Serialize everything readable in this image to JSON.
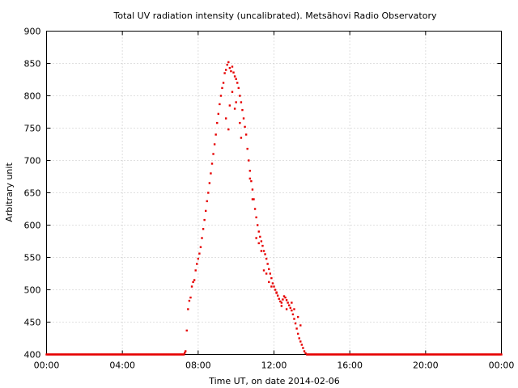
{
  "chart_data": {
    "type": "scatter",
    "title": "Total UV radiation intensity (uncalibrated). Metsähovi Radio Observatory",
    "xlabel": "Time UT, on date 2014-02-06",
    "ylabel": "Arbitrary unit",
    "xlim": [
      "00:00",
      "24:00"
    ],
    "ylim": [
      400,
      900
    ],
    "xticks": [
      "00:00",
      "04:00",
      "08:00",
      "12:00",
      "16:00",
      "20:00",
      "00:00"
    ],
    "yticks": [
      400,
      450,
      500,
      550,
      600,
      650,
      700,
      750,
      800,
      850,
      900
    ],
    "grid": true,
    "color": "#e60000",
    "series": [
      {
        "points": [
          [
            "00:00",
            400
          ],
          [
            "07:15",
            400
          ],
          [
            "07:20",
            405
          ],
          [
            "07:24",
            437
          ],
          [
            "07:28",
            470
          ],
          [
            "07:32",
            483
          ],
          [
            "07:36",
            488
          ],
          [
            "07:40",
            505
          ],
          [
            "07:44",
            512
          ],
          [
            "07:48",
            515
          ],
          [
            "07:52",
            530
          ],
          [
            "07:56",
            540
          ],
          [
            "08:00",
            548
          ],
          [
            "08:04",
            556
          ],
          [
            "08:08",
            566
          ],
          [
            "08:12",
            580
          ],
          [
            "08:16",
            594
          ],
          [
            "08:20",
            608
          ],
          [
            "08:24",
            622
          ],
          [
            "08:28",
            637
          ],
          [
            "08:32",
            650
          ],
          [
            "08:36",
            665
          ],
          [
            "08:40",
            680
          ],
          [
            "08:44",
            695
          ],
          [
            "08:48",
            710
          ],
          [
            "08:52",
            725
          ],
          [
            "08:56",
            740
          ],
          [
            "09:00",
            758
          ],
          [
            "09:04",
            772
          ],
          [
            "09:08",
            787
          ],
          [
            "09:12",
            800
          ],
          [
            "09:16",
            812
          ],
          [
            "09:20",
            820
          ],
          [
            "09:24",
            835
          ],
          [
            "09:28",
            840
          ],
          [
            "09:32",
            848
          ],
          [
            "09:36",
            852
          ],
          [
            "09:40",
            843
          ],
          [
            "09:44",
            838
          ],
          [
            "09:48",
            845
          ],
          [
            "09:52",
            836
          ],
          [
            "09:56",
            830
          ],
          [
            "10:00",
            826
          ],
          [
            "10:04",
            820
          ],
          [
            "10:08",
            812
          ],
          [
            "10:12",
            800
          ],
          [
            "10:16",
            790
          ],
          [
            "10:20",
            778
          ],
          [
            "10:24",
            765
          ],
          [
            "10:28",
            752
          ],
          [
            "10:32",
            740
          ],
          [
            "10:36",
            718
          ],
          [
            "10:40",
            700
          ],
          [
            "10:44",
            684
          ],
          [
            "10:48",
            668
          ],
          [
            "10:52",
            655
          ],
          [
            "10:56",
            640
          ],
          [
            "11:00",
            625
          ],
          [
            "11:04",
            612
          ],
          [
            "11:08",
            600
          ],
          [
            "11:12",
            590
          ],
          [
            "11:16",
            582
          ],
          [
            "11:20",
            575
          ],
          [
            "11:24",
            568
          ],
          [
            "11:28",
            560
          ],
          [
            "11:32",
            555
          ],
          [
            "11:36",
            548
          ],
          [
            "11:40",
            540
          ],
          [
            "11:44",
            532
          ],
          [
            "11:48",
            525
          ],
          [
            "11:52",
            518
          ],
          [
            "11:56",
            510
          ],
          [
            "12:00",
            505
          ],
          [
            "12:04",
            500
          ],
          [
            "12:08",
            496
          ],
          [
            "12:12",
            491
          ],
          [
            "12:16",
            486
          ],
          [
            "12:20",
            482
          ],
          [
            "12:24",
            480
          ],
          [
            "12:28",
            485
          ],
          [
            "12:32",
            490
          ],
          [
            "12:36",
            488
          ],
          [
            "12:40",
            484
          ],
          [
            "12:44",
            480
          ],
          [
            "12:48",
            476
          ],
          [
            "12:52",
            472
          ],
          [
            "12:56",
            468
          ],
          [
            "13:00",
            462
          ],
          [
            "13:04",
            455
          ],
          [
            "13:08",
            448
          ],
          [
            "13:12",
            440
          ],
          [
            "13:16",
            432
          ],
          [
            "13:20",
            425
          ],
          [
            "13:24",
            420
          ],
          [
            "13:28",
            415
          ],
          [
            "13:32",
            410
          ],
          [
            "13:36",
            405
          ],
          [
            "13:40",
            402
          ],
          [
            "13:44",
            400
          ],
          [
            "24:00",
            400
          ],
          [
            "09:28",
            765
          ],
          [
            "09:36",
            748
          ],
          [
            "09:48",
            806
          ],
          [
            "10:00",
            790
          ],
          [
            "10:12",
            758
          ],
          [
            "10:16",
            735
          ],
          [
            "09:56",
            780
          ],
          [
            "09:40",
            785
          ],
          [
            "11:04",
            580
          ],
          [
            "11:20",
            560
          ],
          [
            "11:36",
            525
          ],
          [
            "11:52",
            505
          ],
          [
            "12:08",
            495
          ],
          [
            "12:24",
            475
          ],
          [
            "12:40",
            470
          ],
          [
            "12:56",
            480
          ],
          [
            "13:04",
            470
          ],
          [
            "13:16",
            458
          ],
          [
            "13:24",
            445
          ],
          [
            "10:44",
            672
          ],
          [
            "10:52",
            640
          ],
          [
            "11:12",
            572
          ],
          [
            "11:28",
            530
          ],
          [
            "11:44",
            512
          ]
        ]
      }
    ]
  }
}
